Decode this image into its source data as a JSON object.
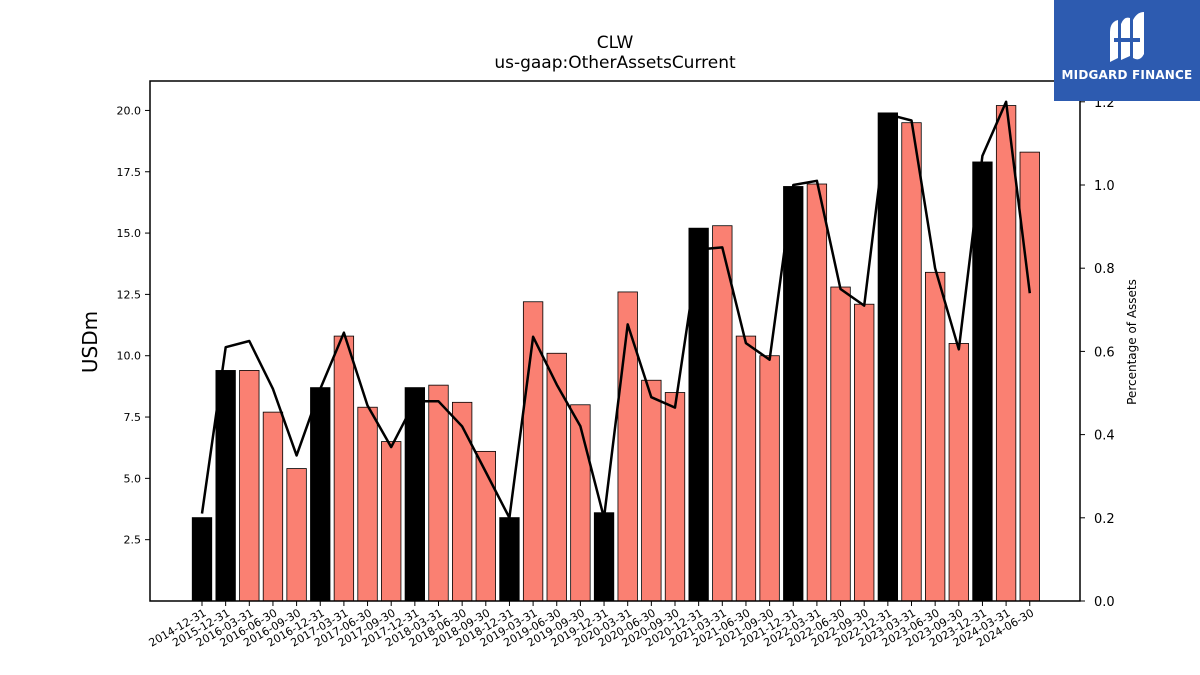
{
  "logo": {
    "text": "MIDGARD FINANCE",
    "background": "#2d5bb0"
  },
  "chart_data": {
    "type": "bar",
    "title": "CLW",
    "subtitle": "us-gaap:OtherAssetsCurrent",
    "ylabel": "USDm",
    "y2label": "Percentage of Assets",
    "ylim": [
      0,
      21.2
    ],
    "y2lim": [
      0,
      1.25
    ],
    "yticks": [
      2.5,
      5.0,
      7.5,
      10.0,
      12.5,
      15.0,
      17.5,
      20.0
    ],
    "y2ticks": [
      0.0,
      0.2,
      0.4,
      0.6,
      0.8,
      1.0,
      1.2
    ],
    "colors": {
      "annual": "#000000",
      "quarterly": "#fa8072",
      "line": "#000000"
    },
    "categories": [
      "2014-12-31",
      "2015-12-31",
      "2016-03-31",
      "2016-06-30",
      "2016-09-30",
      "2016-12-31",
      "2017-03-31",
      "2017-06-30",
      "2017-09-30",
      "2017-12-31",
      "2018-03-31",
      "2018-06-30",
      "2018-09-30",
      "2018-12-31",
      "2019-03-31",
      "2019-06-30",
      "2019-09-30",
      "2019-12-31",
      "2020-03-31",
      "2020-06-30",
      "2020-09-30",
      "2020-12-31",
      "2021-03-31",
      "2021-06-30",
      "2021-09-30",
      "2021-12-31",
      "2022-03-31",
      "2022-06-30",
      "2022-09-30",
      "2022-12-31",
      "2023-03-31",
      "2023-06-30",
      "2023-09-30",
      "2023-12-31",
      "2024-03-31",
      "2024-06-30"
    ],
    "series": [
      {
        "kind": "bar",
        "values": [
          3.4,
          9.4,
          9.4,
          7.7,
          5.4,
          8.7,
          10.8,
          7.9,
          6.5,
          8.7,
          8.8,
          8.1,
          6.1,
          3.4,
          12.2,
          10.1,
          8.0,
          3.6,
          12.6,
          9.0,
          8.5,
          15.2,
          15.3,
          10.8,
          10.0,
          16.9,
          17.0,
          12.8,
          12.1,
          19.9,
          19.5,
          13.4,
          10.5,
          17.9,
          20.2,
          18.3
        ],
        "annual": [
          true,
          true,
          false,
          false,
          false,
          true,
          false,
          false,
          false,
          true,
          false,
          false,
          false,
          true,
          false,
          false,
          false,
          true,
          false,
          false,
          false,
          true,
          false,
          false,
          false,
          true,
          false,
          false,
          false,
          true,
          false,
          false,
          false,
          true,
          false,
          false
        ]
      },
      {
        "kind": "line",
        "axis": "right",
        "values": [
          0.21,
          0.61,
          0.625,
          0.51,
          0.35,
          0.51,
          0.645,
          0.47,
          0.37,
          0.48,
          0.48,
          0.42,
          0.31,
          0.2,
          0.635,
          0.52,
          0.42,
          0.2,
          0.665,
          0.49,
          0.465,
          0.845,
          0.85,
          0.62,
          0.58,
          1.0,
          1.01,
          0.75,
          0.71,
          1.17,
          1.155,
          0.8,
          0.605,
          1.07,
          1.2,
          0.74
        ]
      }
    ]
  }
}
